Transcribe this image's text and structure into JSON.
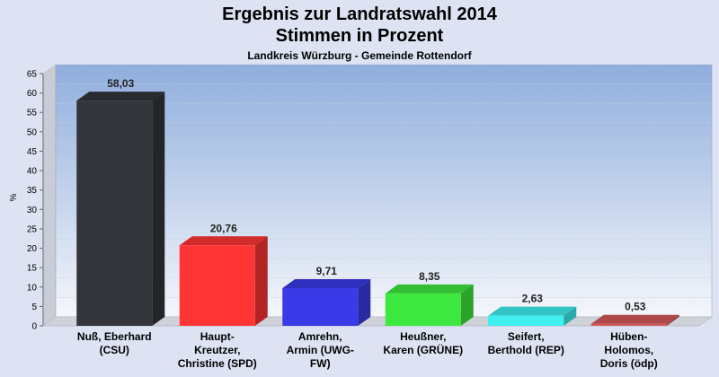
{
  "chart_data": {
    "type": "bar",
    "title": "Ergebnis zur Landratswahl 2014",
    "subtitle": "Stimmen in Prozent",
    "subsubtitle": "Landkreis Würzburg - Gemeinde Rottendorf",
    "ylabel": "%",
    "ylim": [
      0,
      65
    ],
    "yticks": [
      "0",
      "5",
      "10",
      "15",
      "20",
      "25",
      "30",
      "35",
      "40",
      "45",
      "50",
      "55",
      "60",
      "65"
    ],
    "categories": [
      "Nuß, Eberhard\n(CSU)",
      "Haupt-\nKreutzer,\nChristine (SPD)",
      "Amrehn,\nArmin (UWG-\nFW)",
      "Heußner,\nKaren (GRÜNE)",
      "Seifert,\nBerthold (REP)",
      "Hüben-\nHolomos,\nDoris (ödp)"
    ],
    "values": [
      58.03,
      20.76,
      9.71,
      8.35,
      2.63,
      0.53
    ],
    "value_labels": [
      "58,03",
      "20,76",
      "9,71",
      "8,35",
      "2,63",
      "0,53"
    ],
    "colors": [
      "#33353a",
      "#ff3535",
      "#3a3ae8",
      "#3ee83e",
      "#3ef0f0",
      "#d45a5a"
    ],
    "grid": true
  }
}
